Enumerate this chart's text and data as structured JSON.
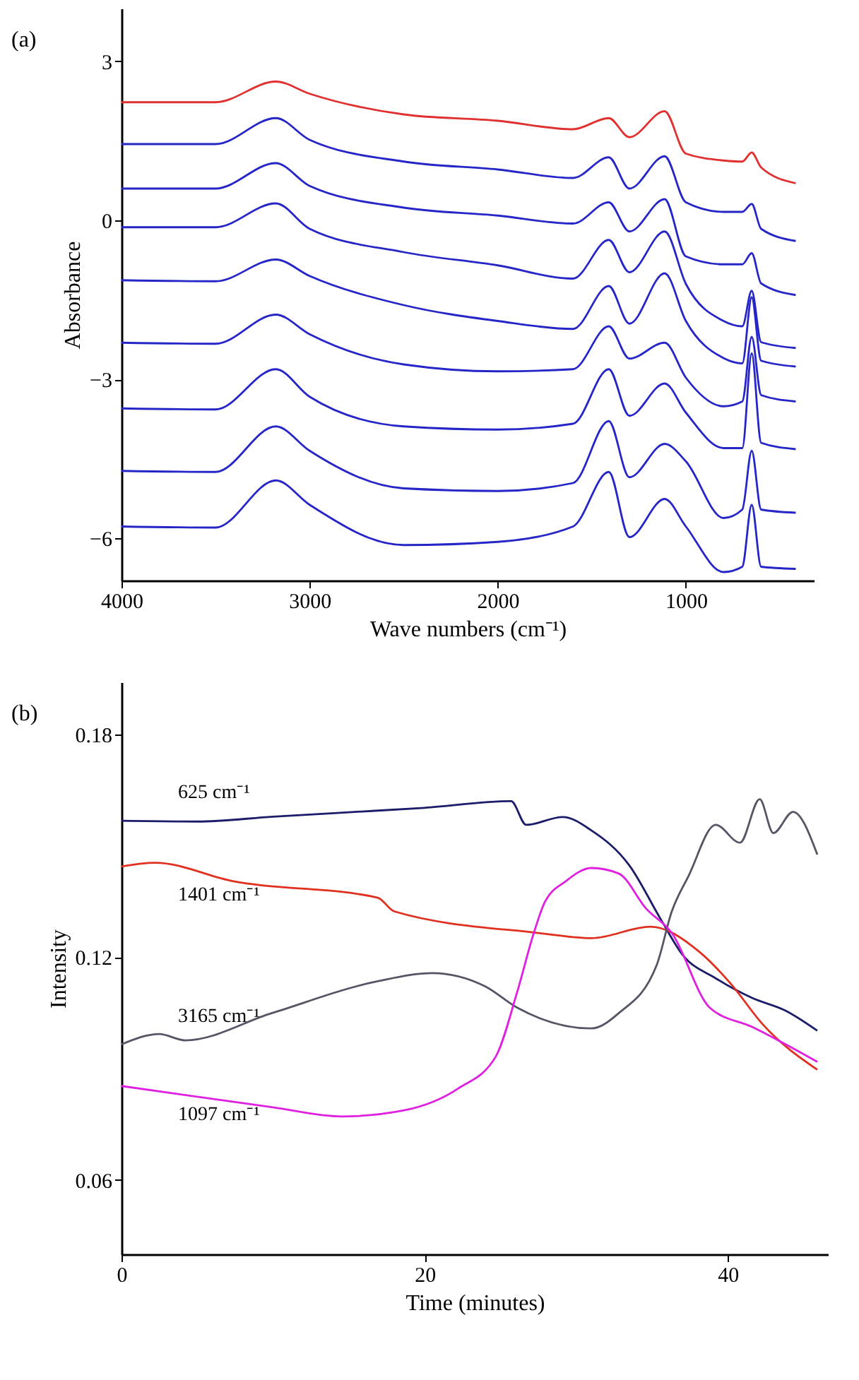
{
  "chart_data": [
    {
      "type": "line",
      "title": "(a)",
      "xlabel": "Wave numbers (cm⁻¹)",
      "ylabel": "Absorbance",
      "x": [
        4000,
        3500,
        3180,
        3000,
        2500,
        2000,
        1600,
        1410,
        1300,
        1113,
        1000,
        800,
        700,
        650,
        600,
        416
      ],
      "xlim": [
        4000,
        320
      ],
      "xticks": [
        4000,
        3000,
        2000,
        1000
      ],
      "ylim": [
        -6.8,
        4
      ],
      "yticks": [
        3,
        0,
        -3,
        -6
      ],
      "series": [
        {
          "color": "#e03030",
          "values": [
            2.23,
            2.23,
            2.62,
            2.39,
            2.0,
            1.88,
            1.72,
            1.93,
            1.57,
            2.06,
            1.26,
            1.13,
            1.11,
            1.28,
            1.0,
            0.7
          ]
        },
        {
          "color": "#2626c8",
          "values": [
            1.44,
            1.44,
            1.93,
            1.52,
            1.11,
            0.96,
            0.8,
            1.19,
            0.6,
            1.21,
            0.34,
            0.16,
            0.16,
            0.31,
            -0.16,
            -0.39
          ]
        },
        {
          "color": "#2626c8",
          "values": [
            0.6,
            0.6,
            1.08,
            0.65,
            0.24,
            0.09,
            -0.06,
            0.34,
            -0.21,
            0.4,
            -0.68,
            -0.83,
            -0.83,
            -0.62,
            -1.19,
            -1.41
          ]
        },
        {
          "color": "#2626c8",
          "values": [
            -0.13,
            -0.13,
            0.32,
            -0.16,
            -0.6,
            -0.85,
            -1.1,
            -0.37,
            -0.98,
            -0.21,
            -1.2,
            -1.9,
            -2.0,
            -1.33,
            -2.3,
            -2.41
          ]
        },
        {
          "color": "#2626c8",
          "values": [
            -1.13,
            -1.15,
            -0.74,
            -1.05,
            -1.6,
            -1.9,
            -2.05,
            -1.24,
            -1.95,
            -1.0,
            -1.9,
            -2.6,
            -2.7,
            -1.45,
            -2.65,
            -2.76
          ]
        },
        {
          "color": "#2626c8",
          "values": [
            -2.31,
            -2.33,
            -1.78,
            -2.15,
            -2.72,
            -2.85,
            -2.81,
            -2.0,
            -2.61,
            -2.31,
            -2.97,
            -3.51,
            -3.42,
            -2.2,
            -3.3,
            -3.42
          ]
        },
        {
          "color": "#2626c8",
          "values": [
            -3.55,
            -3.57,
            -2.81,
            -3.33,
            -3.89,
            -3.95,
            -3.84,
            -2.81,
            -3.69,
            -3.08,
            -3.63,
            -4.3,
            -4.3,
            -2.51,
            -4.2,
            -4.32
          ]
        },
        {
          "color": "#2626c8",
          "values": [
            -4.73,
            -4.75,
            -3.89,
            -4.35,
            -5.06,
            -5.11,
            -4.96,
            -3.79,
            -4.85,
            -4.22,
            -4.55,
            -5.62,
            -5.46,
            -4.35,
            -5.46,
            -5.52
          ]
        },
        {
          "color": "#2626c8",
          "values": [
            -5.78,
            -5.8,
            -4.91,
            -5.37,
            -6.13,
            -6.07,
            -5.78,
            -4.75,
            -5.98,
            -5.26,
            -5.78,
            -6.64,
            -6.54,
            -5.37,
            -6.54,
            -6.58
          ]
        }
      ]
    },
    {
      "type": "line",
      "title": "(b)",
      "xlabel": "Time (minutes)",
      "ylabel": "Intensity",
      "xlim": [
        0,
        46.6
      ],
      "xticks": [
        0,
        20,
        40
      ],
      "ylim": [
        0.04,
        0.194
      ],
      "yticks": [
        0.06,
        0.12,
        0.18
      ],
      "series": [
        {
          "name": "625 cm⁻¹",
          "color": "#1c1c6a",
          "x": [
            0,
            5,
            10,
            15,
            20,
            25.7,
            26.7,
            29.1,
            31,
            33.5,
            35.6,
            37,
            39.2,
            41.6,
            43.8,
            45.9
          ],
          "values": [
            0.1567,
            0.1565,
            0.1578,
            0.159,
            0.1602,
            0.162,
            0.1556,
            0.1577,
            0.1541,
            0.1447,
            0.13,
            0.1207,
            0.1143,
            0.109,
            0.1056,
            0.1002
          ]
        },
        {
          "name": "1401 cm⁻¹",
          "color": "#e03020",
          "x": [
            0,
            2.2,
            7.4,
            16.9,
            18,
            27.5,
            31,
            34.9,
            38.1,
            40.2,
            42.3,
            45.9
          ],
          "values": [
            0.1444,
            0.1454,
            0.1404,
            0.136,
            0.1323,
            0.1265,
            0.1251,
            0.1282,
            0.1215,
            0.1128,
            0.1019,
            0.0897
          ]
        },
        {
          "name": "3165 cm⁻¹",
          "color": "#555566",
          "x": [
            0,
            2.5,
            4.2,
            9.9,
            16.9,
            20.5,
            24,
            26.1,
            31,
            32.8,
            35.3,
            36.3,
            37.4,
            39.2,
            40.8,
            42.1,
            43,
            44.3,
            45.9
          ],
          "values": [
            0.0965,
            0.0993,
            0.0976,
            0.1049,
            0.1135,
            0.1157,
            0.1121,
            0.1064,
            0.1008,
            0.1049,
            0.1178,
            0.1323,
            0.1418,
            0.1556,
            0.1508,
            0.1625,
            0.1534,
            0.1591,
            0.1476
          ]
        },
        {
          "name": "1097 cm⁻¹",
          "color": "#e020e0",
          "x": [
            0,
            9.9,
            14.5,
            18.7,
            22.2,
            24.7,
            26.1,
            27.2,
            27.9,
            29.3,
            31,
            32.8,
            34.6,
            36.3,
            38.8,
            41.6,
            45.9
          ],
          "values": [
            0.0853,
            0.0796,
            0.0771,
            0.0788,
            0.0846,
            0.0933,
            0.1106,
            0.1265,
            0.1346,
            0.1404,
            0.144,
            0.1425,
            0.1331,
            0.1265,
            0.1064,
            0.1012,
            0.0918
          ]
        }
      ]
    }
  ]
}
